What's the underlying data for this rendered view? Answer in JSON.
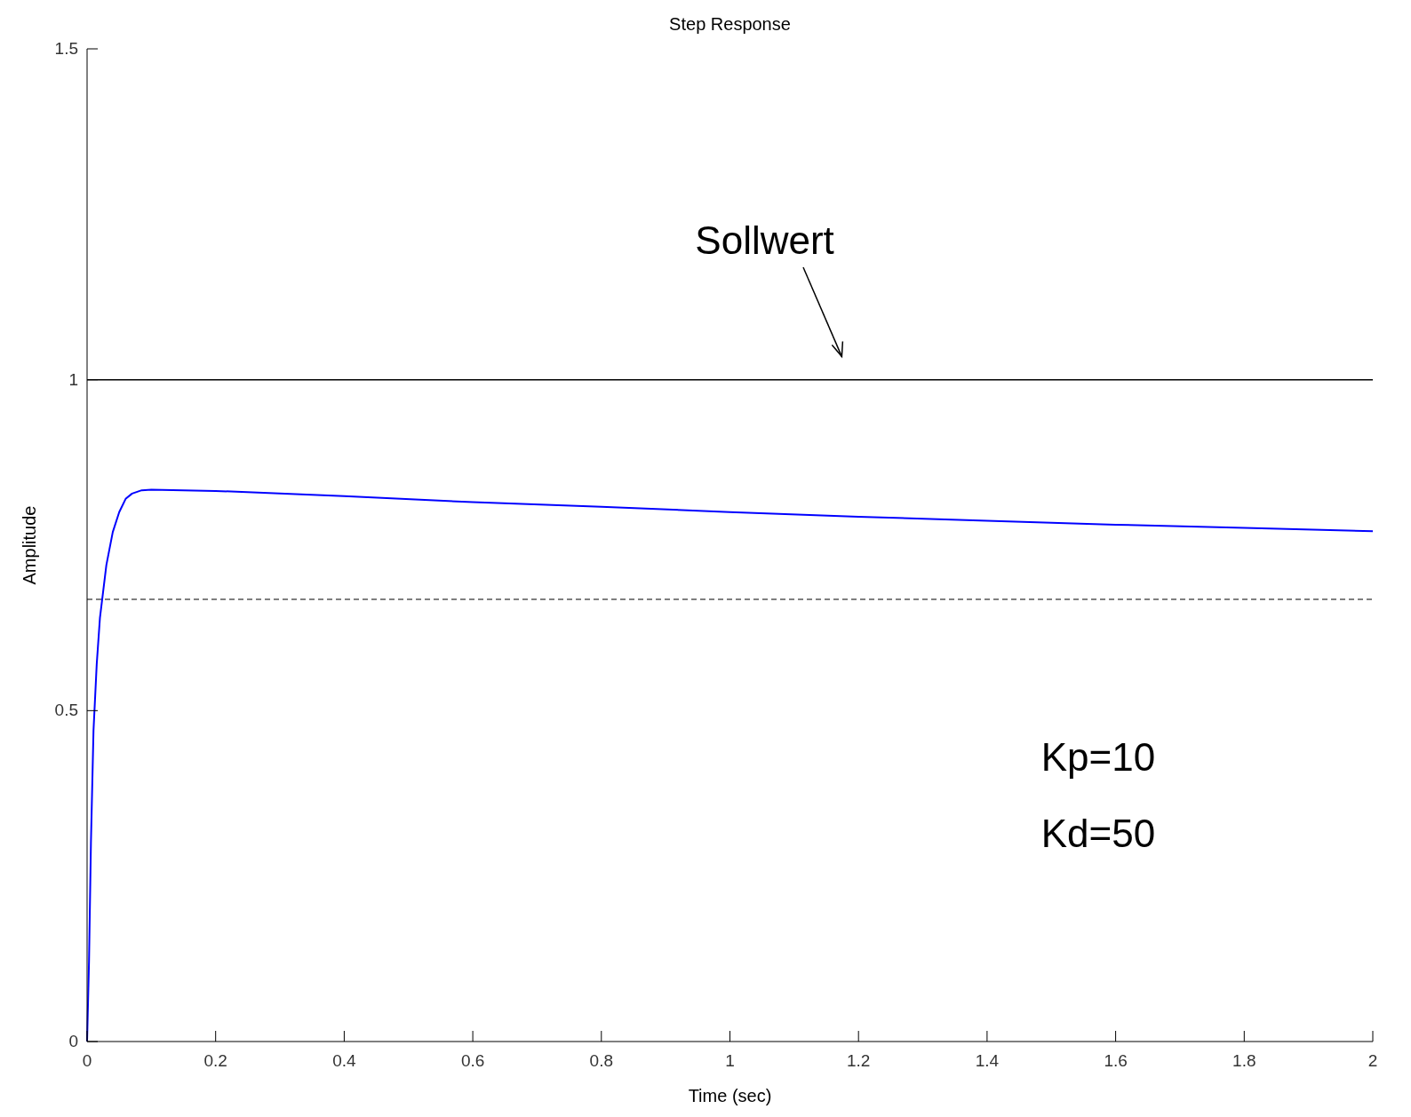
{
  "chart_data": {
    "type": "line",
    "title": "Step Response",
    "xlabel": "Time (sec)",
    "ylabel": "Amplitude",
    "x": [
      0,
      0.003,
      0.006,
      0.01,
      0.015,
      0.02,
      0.03,
      0.04,
      0.05,
      0.06,
      0.07,
      0.085,
      0.1,
      0.2,
      0.4,
      0.6,
      0.8,
      1.0,
      1.2,
      1.4,
      1.6,
      1.8,
      2.0
    ],
    "series": [
      {
        "color": "#0000ff",
        "values": [
          0,
          0.12,
          0.3,
          0.47,
          0.57,
          0.64,
          0.72,
          0.77,
          0.8,
          0.82,
          0.828,
          0.833,
          0.834,
          0.832,
          0.824,
          0.815,
          0.808,
          0.8,
          0.793,
          0.787,
          0.781,
          0.776,
          0.771
        ]
      }
    ],
    "xlim": [
      0,
      2
    ],
    "ylim": [
      0,
      1.5
    ],
    "xticks": [
      0,
      0.2,
      0.4,
      0.6,
      0.8,
      1,
      1.2,
      1.4,
      1.6,
      1.8,
      2
    ],
    "yticks": [
      0,
      0.5,
      1,
      1.5
    ],
    "ref_lines": [
      {
        "axis": "y",
        "value": 1,
        "color": "#000000",
        "line_style": "solid"
      },
      {
        "axis": "y",
        "value": 0.668,
        "color": "#555555",
        "line_style": "dashed"
      }
    ],
    "annotations": [
      "Sollwert",
      "Kp=10",
      "Kd=50"
    ],
    "grid": false,
    "marker": "none",
    "line_style": "solid"
  }
}
